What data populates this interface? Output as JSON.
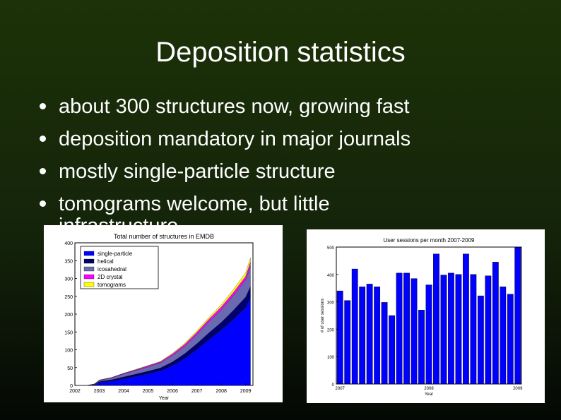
{
  "slide": {
    "title": "Deposition statistics",
    "bullets": [
      "about 300 structures now, growing fast",
      "deposition mandatory in major journals",
      "mostly single-particle structure",
      "tomograms welcome, but little"
    ],
    "bullet_continuation": "infrastructure"
  },
  "chart_data": [
    {
      "type": "area",
      "title": "Total number of structures in EMDB",
      "xlabel": "Year",
      "ylabel": "",
      "xlim": [
        2002,
        2009.3
      ],
      "ylim": [
        0,
        400
      ],
      "xticks": [
        "2002",
        "2003",
        "2004",
        "2005",
        "2006",
        "2007",
        "2008",
        "2009"
      ],
      "yticks": [
        0,
        50,
        100,
        150,
        200,
        250,
        300,
        350,
        400
      ],
      "legend_position": "top-left",
      "stacked": true,
      "x": [
        2002,
        2002.5,
        2002.8,
        2003,
        2003.5,
        2004,
        2004.5,
        2005,
        2005.5,
        2006,
        2006.5,
        2007,
        2007.5,
        2008,
        2008.5,
        2009,
        2009.2
      ],
      "series": [
        {
          "name": "single-particle",
          "color": "#0000ff",
          "values": [
            0,
            0,
            2,
            8,
            12,
            18,
            25,
            32,
            40,
            55,
            75,
            100,
            128,
            155,
            185,
            218,
            245
          ]
        },
        {
          "name": "helical",
          "color": "#00006e",
          "values": [
            0,
            0,
            1,
            3,
            4,
            6,
            7,
            8,
            9,
            11,
            14,
            17,
            20,
            22,
            26,
            30,
            33
          ]
        },
        {
          "name": "icosahedral",
          "color": "#6a6ab0",
          "values": [
            0,
            0,
            1,
            3,
            5,
            8,
            10,
            12,
            14,
            18,
            21,
            26,
            31,
            35,
            41,
            48,
            56
          ]
        },
        {
          "name": "2D crystal",
          "color": "#ff00ff",
          "values": [
            0,
            0,
            0,
            1,
            1,
            2,
            2,
            3,
            3,
            4,
            5,
            6,
            7,
            8,
            9,
            10,
            12
          ]
        },
        {
          "name": "tomograms",
          "color": "#ffff00",
          "values": [
            0,
            0,
            0,
            0,
            0,
            0,
            1,
            1,
            1,
            2,
            3,
            4,
            5,
            6,
            8,
            10,
            12
          ]
        }
      ]
    },
    {
      "type": "bar",
      "title": "User sessions per month 2007-2009",
      "xlabel": "Year",
      "ylabel": "# of user sessions",
      "ylim": [
        0,
        500
      ],
      "yticks": [
        0,
        100,
        200,
        300,
        400,
        500
      ],
      "xticks": [
        "2007",
        "2008",
        "2009"
      ],
      "color": "#0000ff",
      "values": [
        340,
        305,
        420,
        355,
        365,
        355,
        298,
        250,
        405,
        405,
        385,
        270,
        362,
        475,
        398,
        405,
        400,
        475,
        400,
        322,
        395,
        445,
        355,
        328,
        500
      ]
    }
  ]
}
